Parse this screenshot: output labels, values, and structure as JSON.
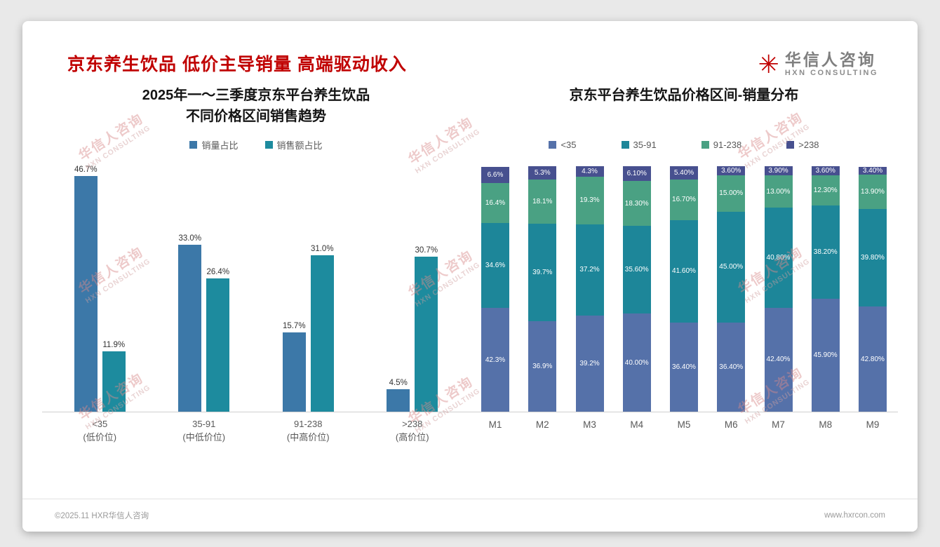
{
  "page": {
    "title": "京东养生饮品 低价主导销量 高端驱动收入",
    "logo": {
      "mark": "hua-star-icon",
      "name": "华信人咨询",
      "sub": "HXN CONSULTING"
    },
    "watermark": {
      "line1": "华信人咨询",
      "line2": "HXN CONSULTING"
    },
    "footer_left": "©2025.11 HXR华信人咨询",
    "footer_right": "www.hxrcon.com"
  },
  "colors": {
    "title_red": "#c00000",
    "left_blue": "#3c78a8",
    "left_teal": "#1d8b9e",
    "stack_blue": "#5571a9",
    "stack_teal": "#1d8699",
    "stack_green": "#4aa183",
    "stack_indigo": "#47508f"
  },
  "chart_data": [
    {
      "type": "bar",
      "title_lines": [
        "2025年一～三季度京东平台养生饮品",
        "不同价格区间销售趋势"
      ],
      "categories": [
        "<35",
        "35-91",
        "91-238",
        ">238"
      ],
      "category_sublabels": [
        "(低价位)",
        "(中低价位)",
        "(中高价位)",
        "(高价位)"
      ],
      "series": [
        {
          "name": "销量占比",
          "color": "#3c78a8",
          "values": [
            46.7,
            33.0,
            15.7,
            4.5
          ],
          "labels": [
            "46.7%",
            "33.0%",
            "15.7%",
            "4.5%"
          ]
        },
        {
          "name": "销售额占比",
          "color": "#1d8b9e",
          "values": [
            11.9,
            26.4,
            31.0,
            30.7
          ],
          "labels": [
            "11.9%",
            "26.4%",
            "31.0%",
            "30.7%"
          ]
        }
      ],
      "ylim": [
        0,
        50
      ],
      "legend_position": "top",
      "grid": false
    },
    {
      "type": "bar",
      "stacked": true,
      "title": "京东平台养生饮品价格区间-销量分布",
      "categories": [
        "M1",
        "M2",
        "M3",
        "M4",
        "M5",
        "M6",
        "M7",
        "M8",
        "M9"
      ],
      "series": [
        {
          "name": "<35",
          "color": "#5571a9",
          "values": [
            42.3,
            36.9,
            39.2,
            40.0,
            36.4,
            36.4,
            42.4,
            45.9,
            42.8
          ],
          "labels": [
            "42.3%",
            "36.9%",
            "39.2%",
            "40.00%",
            "36.40%",
            "36.40%",
            "42.40%",
            "45.90%",
            "42.80%"
          ]
        },
        {
          "name": "35-91",
          "color": "#1d8699",
          "values": [
            34.6,
            39.7,
            37.2,
            35.6,
            41.6,
            45.0,
            40.8,
            38.2,
            39.8
          ],
          "labels": [
            "34.6%",
            "39.7%",
            "37.2%",
            "35.60%",
            "41.60%",
            "45.00%",
            "40.80%",
            "38.20%",
            "39.80%"
          ]
        },
        {
          "name": "91-238",
          "color": "#4aa183",
          "values": [
            16.4,
            18.1,
            19.3,
            18.3,
            16.7,
            15.0,
            13.0,
            12.3,
            13.9
          ],
          "labels": [
            "16.4%",
            "18.1%",
            "19.3%",
            "18.30%",
            "16.70%",
            "15.00%",
            "13.00%",
            "12.30%",
            "13.90%"
          ]
        },
        {
          "name": ">238",
          "color": "#47508f",
          "values": [
            6.6,
            5.3,
            4.3,
            6.1,
            5.4,
            3.6,
            3.9,
            3.6,
            3.4
          ],
          "labels": [
            "6.6%",
            "5.3%",
            "4.3%",
            "6.10%",
            "5.40%",
            "3.60%",
            "3.90%",
            "3.60%",
            "3.40%"
          ]
        }
      ],
      "ylim": [
        0,
        100
      ],
      "legend_position": "top",
      "grid": false
    }
  ]
}
